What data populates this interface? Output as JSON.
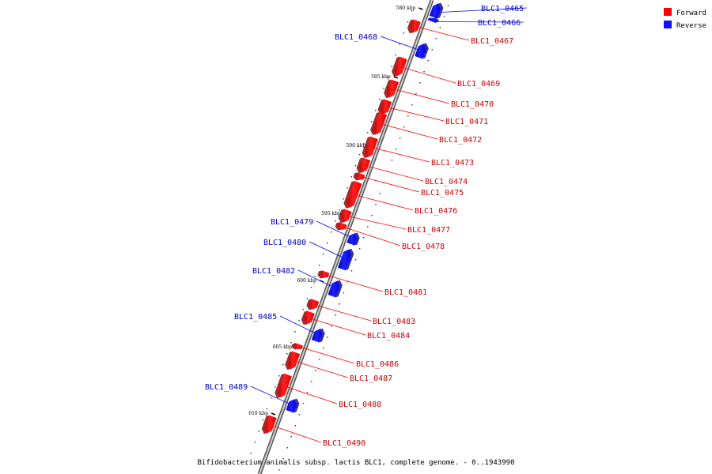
{
  "colors": {
    "forward": "#ff0000",
    "reverse": "#1010ff",
    "backbone": "#9a9a9a",
    "leader_forward": "#ff0000",
    "leader_reverse": "#0000ff"
  },
  "legend": {
    "forward_label": "Forward",
    "reverse_label": "Reverse"
  },
  "caption": "Bifidobacterium animalis subsp. lactis BLC1, complete genome. - 0..1943990",
  "scale_labels": [
    "580 kbp",
    "585 kbp",
    "590 kbp",
    "595 kbp",
    "600 kbp",
    "605 kbp",
    "610 kbp"
  ],
  "genes": [
    {
      "label": "BLC1_0465",
      "strand": "reverse"
    },
    {
      "label": "BLC1_0466",
      "strand": "reverse"
    },
    {
      "label": "BLC1_0467",
      "strand": "forward"
    },
    {
      "label": "BLC1_0468",
      "strand": "reverse"
    },
    {
      "label": "BLC1_0469",
      "strand": "forward"
    },
    {
      "label": "BLC1_0470",
      "strand": "forward"
    },
    {
      "label": "BLC1_0471",
      "strand": "forward"
    },
    {
      "label": "BLC1_0472",
      "strand": "forward"
    },
    {
      "label": "BLC1_0473",
      "strand": "forward"
    },
    {
      "label": "BLC1_0474",
      "strand": "forward"
    },
    {
      "label": "BLC1_0475",
      "strand": "forward"
    },
    {
      "label": "BLC1_0476",
      "strand": "forward"
    },
    {
      "label": "BLC1_0477",
      "strand": "forward"
    },
    {
      "label": "BLC1_0478",
      "strand": "forward"
    },
    {
      "label": "BLC1_0479",
      "strand": "reverse"
    },
    {
      "label": "BLC1_0480",
      "strand": "reverse"
    },
    {
      "label": "BLC1_0481",
      "strand": "forward"
    },
    {
      "label": "BLC1_0482",
      "strand": "reverse"
    },
    {
      "label": "BLC1_0483",
      "strand": "forward"
    },
    {
      "label": "BLC1_0484",
      "strand": "forward"
    },
    {
      "label": "BLC1_0485",
      "strand": "reverse"
    },
    {
      "label": "BLC1_0486",
      "strand": "forward"
    },
    {
      "label": "BLC1_0487",
      "strand": "forward"
    },
    {
      "label": "BLC1_0488",
      "strand": "forward"
    },
    {
      "label": "BLC1_0489",
      "strand": "reverse"
    },
    {
      "label": "BLC1_0490",
      "strand": "forward"
    }
  ]
}
